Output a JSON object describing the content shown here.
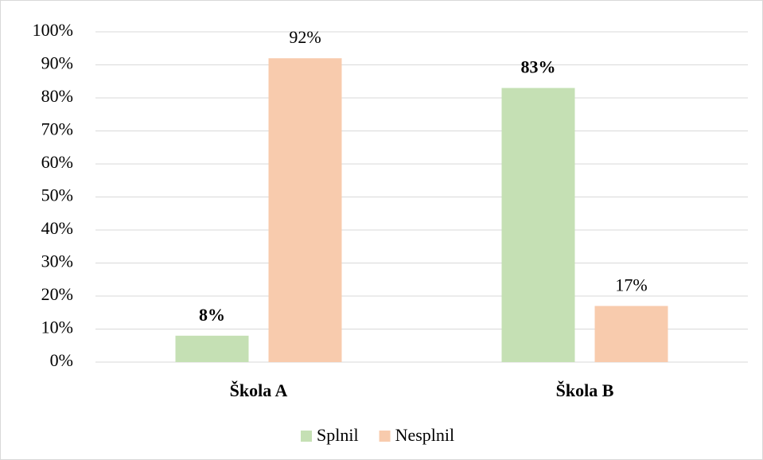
{
  "chart_data": {
    "type": "bar",
    "categories": [
      "Škola A",
      "Škola B"
    ],
    "series": [
      {
        "name": "Splnil",
        "color": "#c5e0b4",
        "values": [
          8,
          83
        ],
        "value_labels": [
          "8%",
          "83%"
        ]
      },
      {
        "name": "Nesplnil",
        "color": "#f8cbad",
        "values": [
          92,
          17
        ],
        "value_labels": [
          "92%",
          "17%"
        ]
      }
    ],
    "ylim": [
      0,
      100
    ],
    "yticks": [
      {
        "value": 0,
        "label": "0%"
      },
      {
        "value": 10,
        "label": "10%"
      },
      {
        "value": 20,
        "label": "20%"
      },
      {
        "value": 30,
        "label": "30%"
      },
      {
        "value": 40,
        "label": "40%"
      },
      {
        "value": 50,
        "label": "50%"
      },
      {
        "value": 60,
        "label": "60%"
      },
      {
        "value": 70,
        "label": "70%"
      },
      {
        "value": 80,
        "label": "80%"
      },
      {
        "value": 90,
        "label": "90%"
      },
      {
        "value": 100,
        "label": "100%"
      }
    ],
    "grid": true,
    "legend": "bottom"
  }
}
